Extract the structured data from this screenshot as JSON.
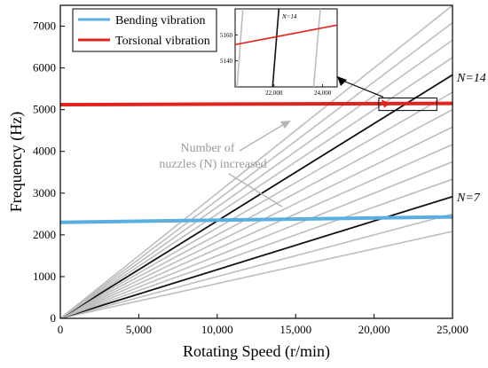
{
  "chart_data": {
    "type": "line",
    "xlabel": "Rotating Speed  (r/min)",
    "ylabel": "Frequency (Hz)",
    "xlim": [
      0,
      25000
    ],
    "ylim": [
      0,
      7500
    ],
    "xticks": [
      0,
      5000,
      10000,
      15000,
      20000,
      25000
    ],
    "xtick_labels": [
      "0",
      "5,000",
      "10,000",
      "15,000",
      "20,000",
      "25,000"
    ],
    "yticks": [
      0,
      1000,
      2000,
      3000,
      4000,
      5000,
      6000,
      7000
    ],
    "ytick_labels": [
      "0",
      "1000",
      "2000",
      "3000",
      "4000",
      "5000",
      "6000",
      "7000"
    ],
    "grid": false,
    "legend_position": "top-left",
    "series": [
      {
        "name": "Bending vibration",
        "color": "#5aaee0",
        "x": [
          0,
          25000
        ],
        "y": [
          2300,
          2430
        ]
      },
      {
        "name": "Torsional vibration",
        "color": "#e0231c",
        "x": [
          0,
          25000
        ],
        "y": [
          5120,
          5150
        ]
      }
    ],
    "harmonic_lines": {
      "description_label": "",
      "n_values": [
        5,
        6,
        7,
        8,
        9,
        10,
        11,
        12,
        13,
        14,
        15,
        16,
        17,
        18
      ],
      "highlighted_n": [
        7,
        14
      ],
      "gray_color": "#bdbdbd",
      "highlight_color": "#111111"
    },
    "annotations": {
      "n14_label": "N=14",
      "n7_label": "N=7",
      "arrow_text_line1": "Number of",
      "arrow_text_line2": "nuzzles (N) increased"
    },
    "inset": {
      "xlim": [
        20400,
        24600
      ],
      "ylim": [
        5120,
        5180
      ],
      "xticks": [
        22000,
        24000
      ],
      "xtick_labels": [
        "22,000",
        "24,000"
      ],
      "yticks": [
        5140,
        5160
      ],
      "ytick_labels": [
        "5140",
        "5160"
      ],
      "label": "N=14"
    }
  }
}
